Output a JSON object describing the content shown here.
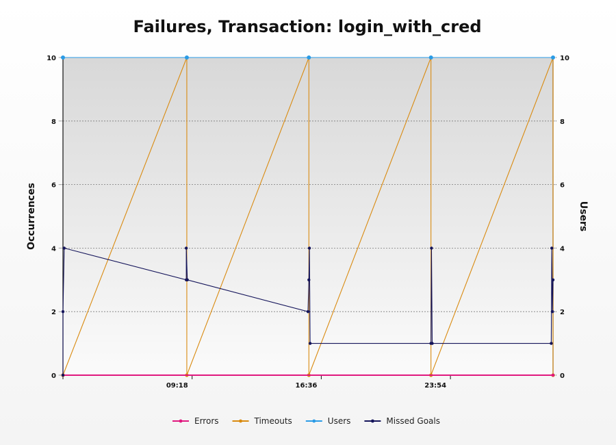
{
  "chart_data": {
    "type": "line",
    "title": "Failures, Transaction: login_with_cred",
    "ylabel": "Occurrences",
    "y2label": "Users",
    "ylim": [
      0,
      10
    ],
    "y2lim": [
      0,
      10
    ],
    "yticks": [
      0,
      2,
      4,
      6,
      8,
      10
    ],
    "xlim": [
      2.0,
      29.7
    ],
    "xticks": [
      {
        "value": 9.3,
        "label": "09:18"
      },
      {
        "value": 16.6,
        "label": "16:36"
      },
      {
        "value": 23.9,
        "label": "23:54"
      }
    ],
    "grid": true,
    "legend_position": "bottom",
    "series": [
      {
        "name": "Errors",
        "color": "#e0177e",
        "axis": "left",
        "x": [
          2.0,
          29.7
        ],
        "y": [
          0,
          0
        ]
      },
      {
        "name": "Timeouts",
        "color": "#d98a0f",
        "axis": "left",
        "x": [
          2.0,
          9.0,
          9.0,
          15.9,
          15.9,
          22.8,
          22.8,
          29.7,
          29.7
        ],
        "y": [
          0,
          10,
          0,
          10,
          0,
          10,
          0,
          10,
          0
        ]
      },
      {
        "name": "Users",
        "color": "#2a9be6",
        "axis": "right",
        "x": [
          2.0,
          9.0,
          15.9,
          22.8,
          29.7
        ],
        "y": [
          10,
          10,
          10,
          10,
          10
        ]
      },
      {
        "name": "Missed Goals",
        "color": "#14145a",
        "axis": "left",
        "x": [
          2.0,
          2.0,
          2.07,
          8.97,
          8.97,
          9.03,
          15.85,
          15.9,
          15.93,
          15.97,
          22.8,
          22.83,
          22.87,
          29.6,
          29.63,
          29.67,
          29.7
        ],
        "y": [
          0,
          2,
          4,
          3,
          4,
          3,
          2,
          3,
          4,
          1,
          1,
          4,
          1,
          1,
          4,
          2,
          3
        ]
      }
    ]
  }
}
